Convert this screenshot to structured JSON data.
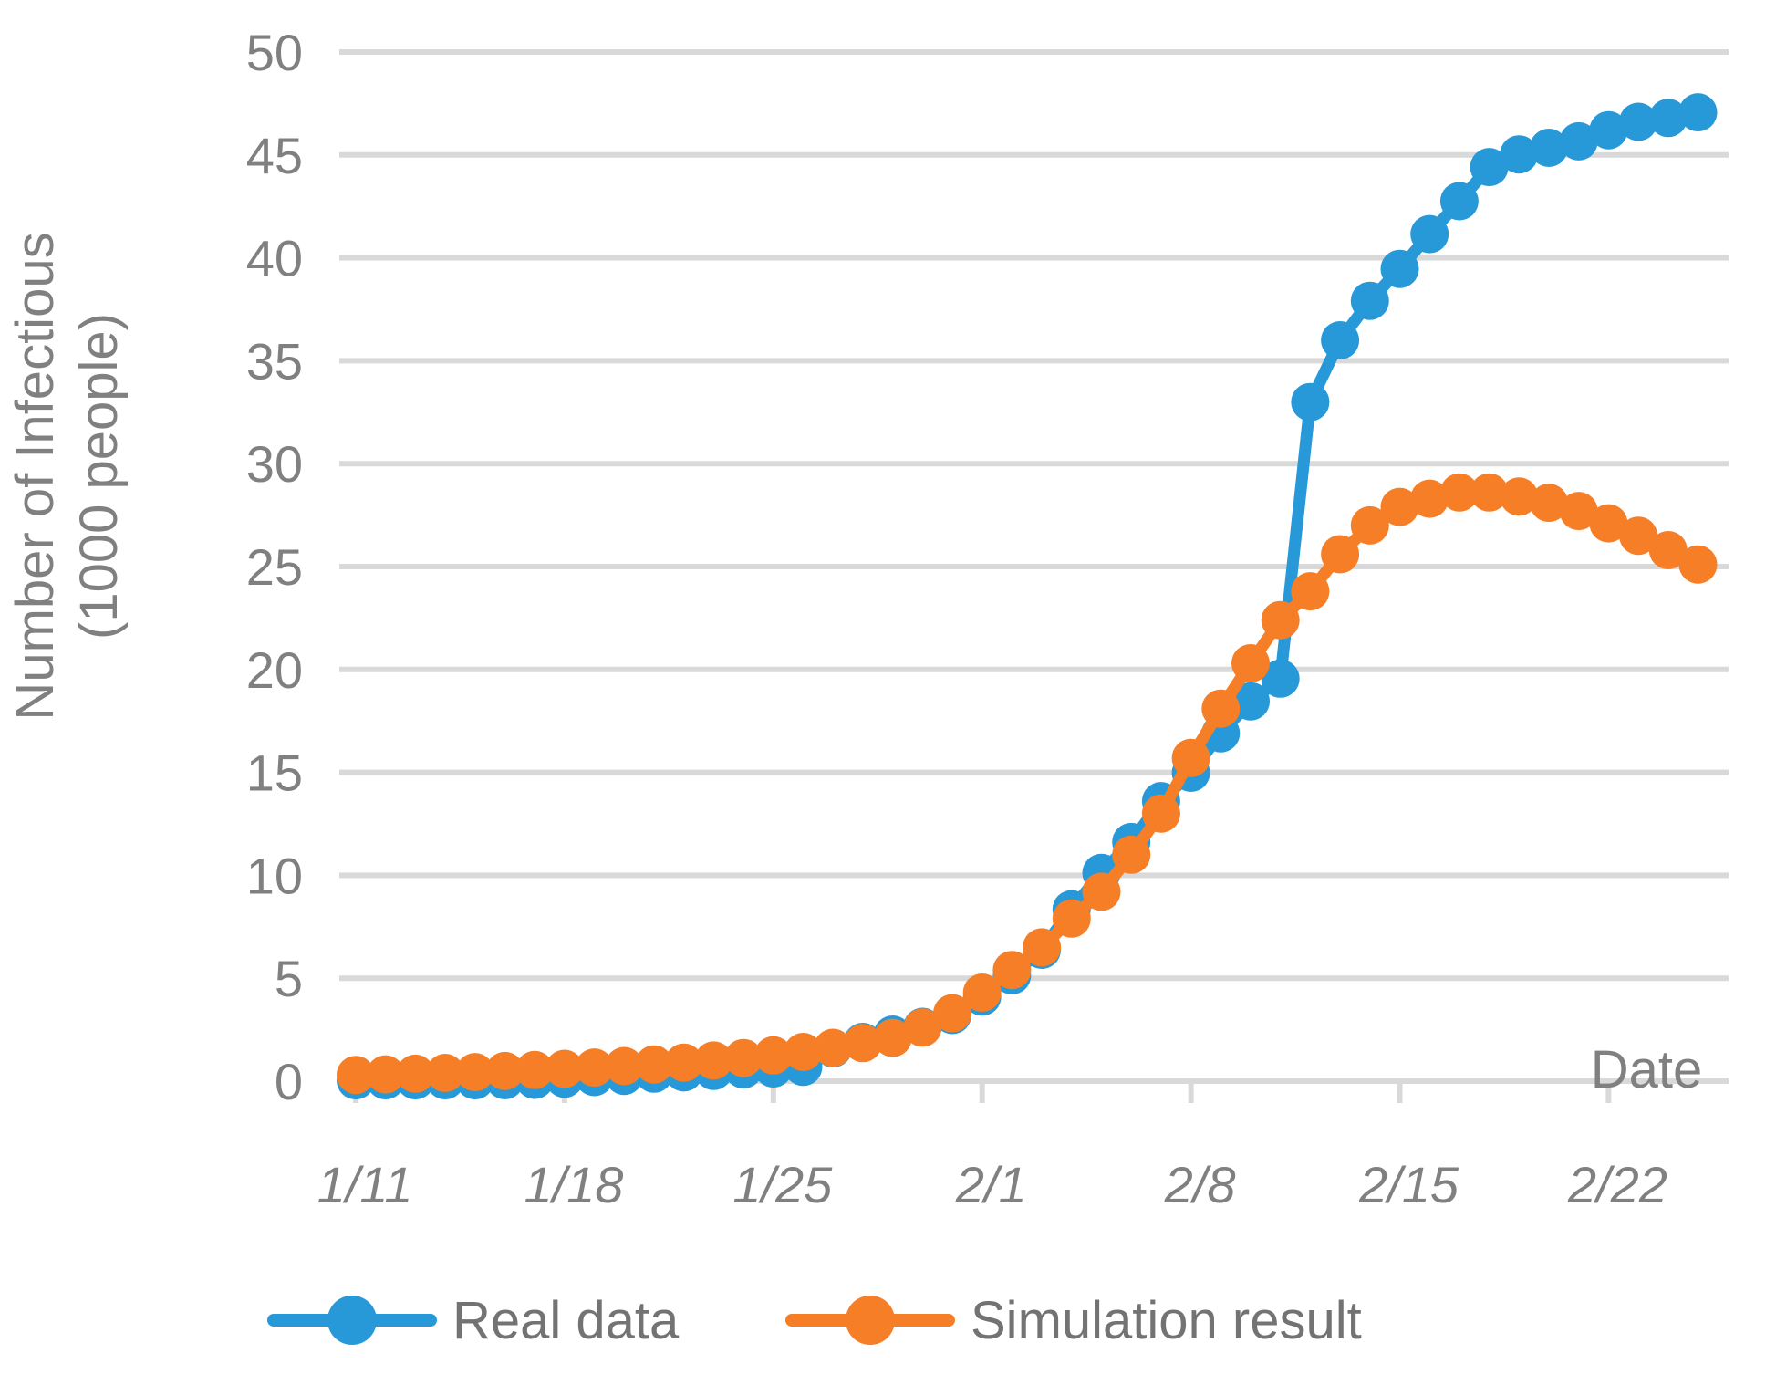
{
  "chart_data": {
    "type": "line",
    "title": "",
    "xlabel": "Date",
    "ylabel_line1": "Number of Infectious",
    "ylabel_line2": "(1000 people)",
    "ylim": [
      0,
      50
    ],
    "y_ticks": [
      0,
      5,
      10,
      15,
      20,
      25,
      30,
      35,
      40,
      45,
      50
    ],
    "x_tick_labels": [
      "1/11",
      "1/18",
      "1/25",
      "2/1",
      "2/8",
      "2/15",
      "2/22"
    ],
    "x_tick_indices": [
      0,
      7,
      14,
      21,
      28,
      35,
      42
    ],
    "categories": [
      "1/11",
      "1/12",
      "1/13",
      "1/14",
      "1/15",
      "1/16",
      "1/17",
      "1/18",
      "1/19",
      "1/20",
      "1/21",
      "1/22",
      "1/23",
      "1/24",
      "1/25",
      "1/26",
      "1/27",
      "1/28",
      "1/29",
      "1/30",
      "1/31",
      "2/1",
      "2/2",
      "2/3",
      "2/4",
      "2/5",
      "2/6",
      "2/7",
      "2/8",
      "2/9",
      "2/10",
      "2/11",
      "2/12",
      "2/13",
      "2/14",
      "2/15",
      "2/16",
      "2/17",
      "2/18",
      "2/19",
      "2/20",
      "2/21",
      "2/22",
      "2/23",
      "2/24",
      "2/25"
    ],
    "series": [
      {
        "name": "Real data",
        "color": "#2799D8",
        "values": [
          0.041,
          0.041,
          0.041,
          0.041,
          0.041,
          0.045,
          0.062,
          0.121,
          0.198,
          0.258,
          0.363,
          0.425,
          0.495,
          0.572,
          0.618,
          0.698,
          1.59,
          1.905,
          2.261,
          2.639,
          3.215,
          4.109,
          5.142,
          6.384,
          8.351,
          10.117,
          11.618,
          13.603,
          14.982,
          16.902,
          18.454,
          19.558,
          32.994,
          35.991,
          37.914,
          39.462,
          41.152,
          42.752,
          44.412,
          45.027,
          45.346,
          45.66,
          46.201,
          46.607,
          46.797,
          47.071
        ]
      },
      {
        "name": "Simulation result",
        "color": "#F57E27",
        "values": [
          0.3,
          0.33,
          0.36,
          0.4,
          0.44,
          0.49,
          0.54,
          0.6,
          0.66,
          0.73,
          0.81,
          0.9,
          1.0,
          1.12,
          1.25,
          1.42,
          1.62,
          1.85,
          2.1,
          2.6,
          3.3,
          4.3,
          5.4,
          6.5,
          7.9,
          9.2,
          11.0,
          13.0,
          15.7,
          18.1,
          20.3,
          22.4,
          23.8,
          25.6,
          27.0,
          27.9,
          28.3,
          28.6,
          28.6,
          28.4,
          28.1,
          27.7,
          27.1,
          26.5,
          25.8,
          25.1
        ]
      }
    ],
    "grid": true,
    "legend_position": "bottom",
    "gridline_color": "#D9D9D9",
    "axis_color": "#D9D9D9",
    "label_color": "#808080",
    "legend_text_color": "#737373"
  }
}
